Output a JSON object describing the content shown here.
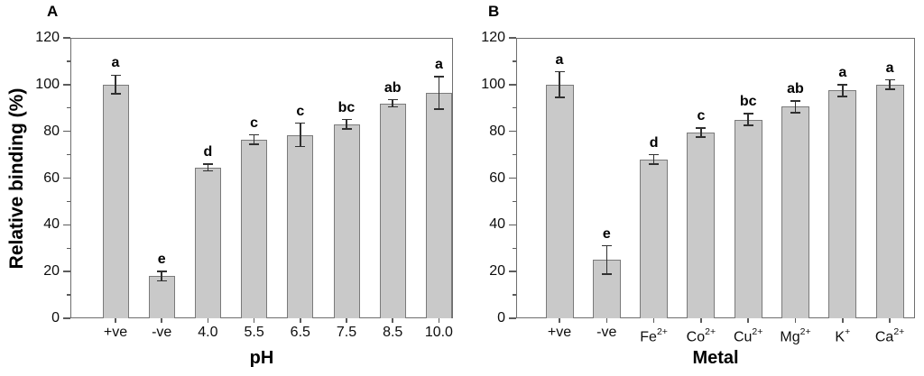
{
  "figure": {
    "ylabel": "Relative binding (%)",
    "background_color": "#ffffff",
    "bar_fill_color": "#c9c9c9",
    "bar_border_color": "#7a7a7a",
    "axis_color": "#6e6e6e",
    "error_bar_color": "#303030",
    "text_color": "#000000"
  },
  "chart_data": [
    {
      "type": "bar",
      "panel": "A",
      "xlabel": "pH",
      "ylabel": "Relative binding (%)",
      "ylim": [
        0,
        120
      ],
      "yticks": [
        0,
        20,
        40,
        60,
        80,
        100,
        120
      ],
      "minor_yticks": [
        10,
        30,
        50,
        70,
        90,
        110
      ],
      "grid": "off",
      "legend": "none",
      "categories": [
        {
          "text": "+ve",
          "sup": ""
        },
        {
          "text": "-ve",
          "sup": ""
        },
        {
          "text": "4.0",
          "sup": ""
        },
        {
          "text": "5.5",
          "sup": ""
        },
        {
          "text": "6.5",
          "sup": ""
        },
        {
          "text": "7.5",
          "sup": ""
        },
        {
          "text": "8.5",
          "sup": ""
        },
        {
          "text": "10.0",
          "sup": ""
        }
      ],
      "values": [
        100,
        18,
        64.5,
        76.5,
        78.5,
        83,
        92,
        96.5
      ],
      "errors": [
        4,
        2,
        1.5,
        2,
        5,
        2,
        1.5,
        7
      ],
      "sig_letters": [
        "a",
        "e",
        "d",
        "c",
        "c",
        "bc",
        "ab",
        "a"
      ]
    },
    {
      "type": "bar",
      "panel": "B",
      "xlabel": "Metal",
      "ylabel": "Relative binding (%)",
      "ylim": [
        0,
        120
      ],
      "yticks": [
        0,
        20,
        40,
        60,
        80,
        100,
        120
      ],
      "minor_yticks": [
        10,
        30,
        50,
        70,
        90,
        110
      ],
      "grid": "off",
      "legend": "none",
      "categories": [
        {
          "text": "+ve",
          "sup": ""
        },
        {
          "text": "-ve",
          "sup": ""
        },
        {
          "text": "Fe",
          "sup": "2+"
        },
        {
          "text": "Co",
          "sup": "2+"
        },
        {
          "text": "Cu",
          "sup": "2+"
        },
        {
          "text": "Mg",
          "sup": "2+"
        },
        {
          "text": "K",
          "sup": "+"
        },
        {
          "text": "Ca",
          "sup": "2+"
        }
      ],
      "values": [
        100,
        25,
        68,
        79.5,
        85,
        90.5,
        97.5,
        100
      ],
      "errors": [
        5.5,
        6,
        2,
        2,
        2.5,
        2.5,
        2.5,
        2
      ],
      "sig_letters": [
        "a",
        "e",
        "d",
        "c",
        "bc",
        "ab",
        "a",
        "a"
      ]
    }
  ]
}
